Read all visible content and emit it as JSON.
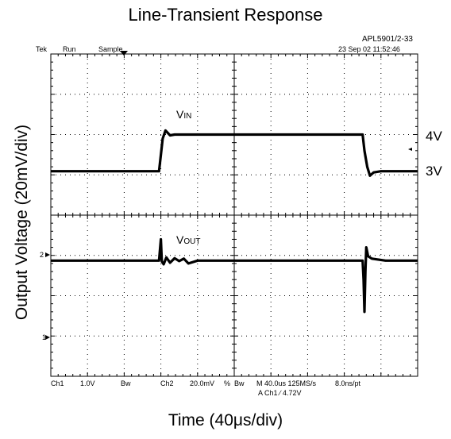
{
  "chart_data": {
    "type": "line",
    "title": "Line-Transient Response",
    "ylabel": "Output Voltage (20mV/div)",
    "xlabel": "Time (40μs/div)",
    "xlim": [
      0,
      400
    ],
    "grid": true,
    "divisions": {
      "x": 10,
      "y": 8
    },
    "series": [
      {
        "name": "VIN",
        "label_main": "V",
        "label_sub": "IN",
        "color": "#000000",
        "x": [
          0,
          118,
          122,
          125,
          130,
          135,
          138,
          340,
          342,
          345,
          348,
          352,
          360,
          400
        ],
        "y": [
          5.09,
          5.09,
          5.9,
          6.1,
          5.98,
          6.0,
          6.0,
          6.0,
          5.6,
          5.2,
          4.98,
          5.06,
          5.09,
          5.09
        ]
      },
      {
        "name": "VOUT",
        "label_main": "V",
        "label_sub": "OUT",
        "color": "#000000",
        "x": [
          0,
          118,
          120,
          121,
          123,
          126,
          130,
          135,
          140,
          145,
          150,
          160,
          300,
          340,
          341,
          342,
          343,
          344,
          346,
          350,
          356,
          365,
          400
        ],
        "y": [
          2.87,
          2.87,
          3.4,
          2.85,
          2.78,
          2.95,
          2.82,
          2.93,
          2.86,
          2.92,
          2.8,
          2.87,
          2.87,
          2.87,
          2.4,
          1.6,
          2.6,
          3.2,
          2.98,
          2.92,
          2.9,
          2.87,
          2.87
        ]
      }
    ],
    "right_labels": [
      "4V",
      "3V"
    ],
    "scope": {
      "header_left": [
        "Tek",
        "Run",
        "Sample"
      ],
      "model": "APL5901/2-33",
      "datetime": "23 Sep 02 11:52:46",
      "ch2_marker": "2",
      "ch1_marker": "1",
      "footer": {
        "ch1": "Ch1",
        "ch1_scale": "1.0V",
        "bw1": "Bw",
        "ch2": "Ch2",
        "ch2_scale": "20.0mV",
        "pct": "%",
        "bw2": "Bw",
        "timebase": "M 40.0us 125MS/s",
        "pts": "8.0ns/pt",
        "trigger": "A  Ch1  ∕  4.72V"
      }
    }
  }
}
